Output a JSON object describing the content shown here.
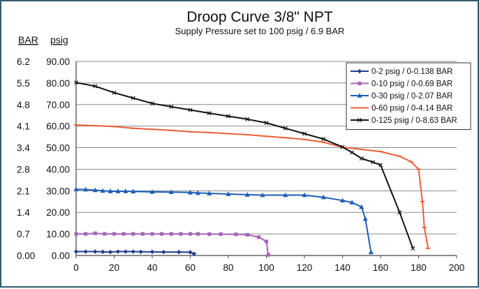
{
  "chart_data": {
    "type": "line",
    "title": "Droop Curve 3/8\" NPT",
    "subtitle": "Supply Pressure set to 100 psig / 6.9 BAR",
    "ylabel_bar": "BAR",
    "ylabel_psig": "psig",
    "xlim": [
      0,
      200
    ],
    "ylim": [
      0,
      90
    ],
    "x_ticks": [
      "0",
      "20",
      "40",
      "60",
      "80",
      "100",
      "120",
      "140",
      "160",
      "180",
      "200"
    ],
    "x_tick_values": [
      0,
      20,
      40,
      60,
      80,
      100,
      120,
      140,
      160,
      180,
      200
    ],
    "y_ticks_psig": [
      "0.00",
      "10.00",
      "20.00",
      "30.00",
      "40.00",
      "50.00",
      "60.00",
      "70.00",
      "80.00",
      "90.00"
    ],
    "y_ticks_bar": [
      "0.00",
      "0.7",
      "1.4",
      "2.1",
      "2.8",
      "3.4",
      "4.1",
      "4.8",
      "5.5",
      "6.2"
    ],
    "y_tick_values": [
      0,
      10,
      20,
      30,
      40,
      50,
      60,
      70,
      80,
      90
    ],
    "grid": "horizontal",
    "legend_position": "top-right",
    "series": [
      {
        "name": "0-2 psig / 0-0.138 BAR",
        "color": "#1f3d8f",
        "marker": "diamond",
        "x": [
          0,
          5,
          10,
          14,
          18,
          22,
          26,
          30,
          34,
          40,
          46,
          54,
          60,
          62
        ],
        "y": [
          1.8,
          1.8,
          1.8,
          1.7,
          1.6,
          1.8,
          1.8,
          1.8,
          1.7,
          1.7,
          1.6,
          1.6,
          1.5,
          0.8
        ]
      },
      {
        "name": "0-10 psig / 0-0.69 BAR",
        "color": "#a566b8",
        "marker": "square",
        "x": [
          0,
          5,
          10,
          15,
          20,
          25,
          30,
          35,
          40,
          45,
          50,
          55,
          60,
          64,
          70,
          76,
          84,
          90,
          96,
          100,
          101
        ],
        "y": [
          10,
          10,
          10.3,
          10,
          10,
          10,
          10,
          10,
          10,
          10,
          10,
          10,
          10,
          10,
          9.9,
          9.9,
          9.8,
          9.6,
          8.5,
          6.5,
          0.3
        ]
      },
      {
        "name": "0-30 psig / 0-2.07 BAR",
        "color": "#1f5fb8",
        "marker": "triangle",
        "x": [
          0,
          5,
          10,
          14,
          18,
          22,
          26,
          30,
          40,
          50,
          60,
          64,
          70,
          80,
          90,
          98,
          110,
          120,
          130,
          140,
          145,
          150,
          152,
          155
        ],
        "y": [
          30.7,
          30.6,
          30.3,
          30,
          29.8,
          29.8,
          29.8,
          29.7,
          29.5,
          29.4,
          29.2,
          29.0,
          28.8,
          28.5,
          28.2,
          28.0,
          28.0,
          28.0,
          27.0,
          25.5,
          24.6,
          22.5,
          17,
          1.5
        ]
      },
      {
        "name": "0-60 psig / 0-4.14 BAR",
        "color": "#e8603a",
        "marker": "dash",
        "x": [
          0,
          10,
          20,
          30,
          40,
          50,
          60,
          70,
          80,
          90,
          100,
          110,
          120,
          130,
          140,
          150,
          160,
          170,
          176,
          180,
          182,
          183,
          185
        ],
        "y": [
          60.5,
          60.2,
          59.8,
          59.0,
          58.5,
          58.0,
          57.4,
          57.0,
          56.5,
          56.0,
          55.3,
          54.6,
          53.8,
          52.5,
          50.2,
          49.2,
          48.2,
          46.0,
          43.5,
          40.0,
          25.0,
          13.0,
          3.3
        ]
      },
      {
        "name": "0-125 psig / 0-8.63 BAR",
        "color": "#111111",
        "marker": "cross",
        "x": [
          0,
          10,
          20,
          30,
          40,
          50,
          60,
          70,
          80,
          90,
          100,
          110,
          120,
          130,
          140,
          145,
          150,
          156,
          160,
          170,
          177
        ],
        "y": [
          80.2,
          78.5,
          75.5,
          73.0,
          70.5,
          69.0,
          67.5,
          66.0,
          64.6,
          63.2,
          61.5,
          59.0,
          56.5,
          54.0,
          50.3,
          47.8,
          45.0,
          43.3,
          42.0,
          20.0,
          3.3
        ]
      }
    ]
  }
}
